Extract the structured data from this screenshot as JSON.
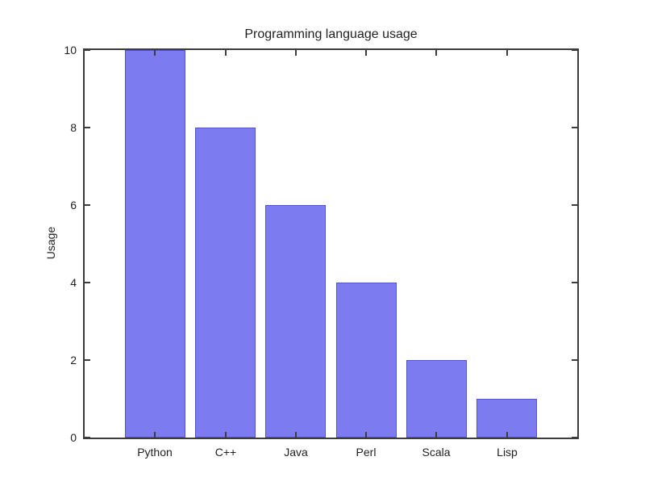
{
  "figure": {
    "title": "Programming language usage",
    "ylabel": "Usage"
  },
  "chart_data": {
    "type": "bar",
    "title": "Programming language usage",
    "xlabel": "",
    "ylabel": "Usage",
    "categories": [
      "Python",
      "C++",
      "Java",
      "Perl",
      "Scala",
      "Lisp"
    ],
    "values": [
      10,
      8,
      6,
      4,
      2,
      1
    ],
    "ylim": [
      0,
      10
    ],
    "yticks": [
      0,
      2,
      4,
      6,
      8,
      10
    ],
    "grid": false,
    "legend": "none",
    "bar_width_fraction": 0.85,
    "colors": {
      "bar_fill": "#7c7cf0",
      "bar_edge": "#5252d0",
      "axis": "#3c3c3c",
      "text": "#1f1f1f",
      "background": "#ffffff"
    }
  }
}
